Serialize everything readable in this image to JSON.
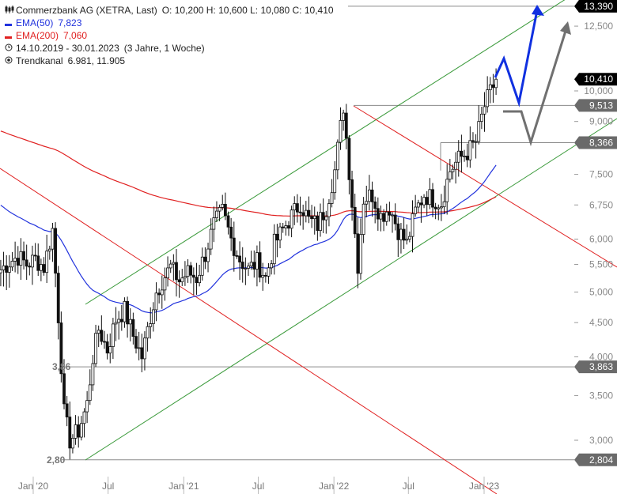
{
  "legend": {
    "title": "Commerzbank AG (XETRA, Last)",
    "ohlc": "O: 10,200  H: 10,600  L: 10,080  C: 10,410",
    "ema50_label": "EMA(50)",
    "ema50_value": "7,823",
    "ema200_label": "EMA(200)",
    "ema200_value": "7,060",
    "period": "14.10.2019 - 30.01.2023",
    "period_note": "(3 Jahre, 1 Woche)",
    "trend_label": "Trendkanal",
    "trend_value": "6.981, 11.905"
  },
  "colors": {
    "ema50": "#2233dd",
    "ema200": "#e02020",
    "channel": "#3a9a3a",
    "downtrend": "#e02020",
    "arrow_blue": "#1030e0",
    "arrow_gray": "#707070",
    "tag_dark": "#000000",
    "tag_gray": "#6a6a6a",
    "candle": "#111111"
  },
  "chart_data": {
    "type": "candlestick",
    "title": "Commerzbank AG (XETRA, Last)",
    "y_scale": "log",
    "ylim": [
      2.6,
      14.2
    ],
    "x_range": [
      "2019-10-14",
      "2023-01-30"
    ],
    "x_ticks": [
      {
        "date": "2020-01-01",
        "label": "Jan '20"
      },
      {
        "date": "2020-07-01",
        "label": "Jul"
      },
      {
        "date": "2021-01-01",
        "label": "Jan '21"
      },
      {
        "date": "2021-07-01",
        "label": "Jul"
      },
      {
        "date": "2022-01-01",
        "label": "Jan '22"
      },
      {
        "date": "2022-07-01",
        "label": "Jul"
      },
      {
        "date": "2023-01-01",
        "label": "Jan '23"
      }
    ],
    "y_ticks": [
      {
        "value": 3.0,
        "label": "3,000"
      },
      {
        "value": 3.5,
        "label": "3,500"
      },
      {
        "value": 4.0,
        "label": "4,000"
      },
      {
        "value": 4.5,
        "label": "4,500"
      },
      {
        "value": 5.0,
        "label": "5,000"
      },
      {
        "value": 5.5,
        "label": "5,500"
      },
      {
        "value": 6.0,
        "label": "6,000"
      },
      {
        "value": 6.75,
        "label": "6,750"
      },
      {
        "value": 7.5,
        "label": "7,500"
      },
      {
        "value": 9.0,
        "label": "9,000"
      },
      {
        "value": 10.0,
        "label": "10,000"
      },
      {
        "value": 12.5,
        "label": "12,500"
      }
    ],
    "close_series": {
      "dates": [
        "2019-10-14",
        "2019-11-04",
        "2019-11-25",
        "2019-12-16",
        "2020-01-06",
        "2020-01-27",
        "2020-02-17",
        "2020-03-02",
        "2020-03-16",
        "2020-03-30",
        "2020-04-20",
        "2020-05-11",
        "2020-05-25",
        "2020-06-08",
        "2020-06-29",
        "2020-07-20",
        "2020-08-10",
        "2020-08-31",
        "2020-09-21",
        "2020-10-12",
        "2020-10-26",
        "2020-11-09",
        "2020-11-30",
        "2020-12-21",
        "2021-01-11",
        "2021-02-01",
        "2021-02-22",
        "2021-03-15",
        "2021-04-05",
        "2021-04-26",
        "2021-05-17",
        "2021-06-07",
        "2021-06-28",
        "2021-07-19",
        "2021-08-09",
        "2021-08-30",
        "2021-09-20",
        "2021-10-11",
        "2021-11-01",
        "2021-11-22",
        "2021-12-13",
        "2022-01-03",
        "2022-01-24",
        "2022-02-14",
        "2022-02-28",
        "2022-03-14",
        "2022-04-04",
        "2022-04-25",
        "2022-05-16",
        "2022-06-06",
        "2022-06-27",
        "2022-07-18",
        "2022-08-08",
        "2022-08-29",
        "2022-09-19",
        "2022-10-10",
        "2022-10-31",
        "2022-11-21",
        "2022-12-12",
        "2023-01-02",
        "2023-01-30"
      ],
      "values": [
        5.4,
        5.55,
        5.65,
        5.5,
        5.6,
        5.45,
        6.2,
        4.6,
        3.3,
        3.0,
        3.1,
        3.4,
        4.0,
        4.4,
        4.1,
        4.55,
        4.7,
        4.3,
        4.0,
        4.6,
        5.0,
        5.2,
        5.45,
        5.2,
        5.35,
        5.25,
        5.7,
        6.3,
        6.6,
        6.0,
        5.6,
        5.4,
        5.55,
        5.25,
        5.9,
        6.2,
        6.5,
        6.8,
        6.4,
        6.3,
        6.7,
        7.6,
        9.5,
        6.8,
        5.5,
        6.9,
        7.0,
        6.5,
        6.7,
        6.2,
        5.9,
        6.6,
        7.0,
        6.9,
        6.8,
        7.6,
        7.9,
        8.1,
        8.4,
        9.5,
        10.41
      ]
    },
    "series": [
      {
        "name": "EMA(50)",
        "last_value": 7.823
      },
      {
        "name": "EMA(200)",
        "last_value": 7.06
      },
      {
        "name": "Trendkanal",
        "values": [
          6.981,
          11.905
        ]
      }
    ],
    "horizontal_levels": [
      {
        "value": 13.39,
        "label": "13,390",
        "style": "dark"
      },
      {
        "value": 10.41,
        "label": "10,410",
        "style": "dark"
      },
      {
        "value": 9.513,
        "label": "9,513",
        "style": "gray"
      },
      {
        "value": 8.366,
        "label": "8,366",
        "style": "gray"
      },
      {
        "value": 3.863,
        "label": "3,863",
        "style": "gray"
      },
      {
        "value": 2.804,
        "label": "2,804",
        "style": "gray"
      }
    ],
    "annotations": [
      {
        "text": "3,86",
        "value": 3.863
      },
      {
        "text": "2,80",
        "value": 2.804
      }
    ]
  }
}
